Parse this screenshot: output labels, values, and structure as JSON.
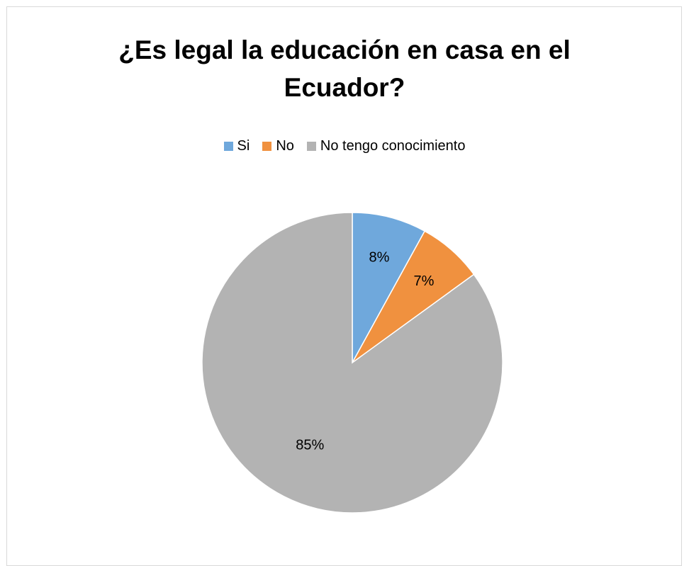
{
  "chart_data": {
    "type": "pie",
    "title": "¿Es legal la educación en casa en el Ecuador?",
    "title_lines": [
      "¿Es legal la educación en casa en el",
      "Ecuador?"
    ],
    "legend_position": "top",
    "slices": [
      {
        "name": "Si",
        "value": 8,
        "label": "8%",
        "color": "#6fa8dc"
      },
      {
        "name": "No",
        "value": 7,
        "label": "7%",
        "color": "#f0913f"
      },
      {
        "name": "No tengo conocimiento",
        "value": 85,
        "label": "85%",
        "color": "#b3b3b3"
      }
    ]
  }
}
